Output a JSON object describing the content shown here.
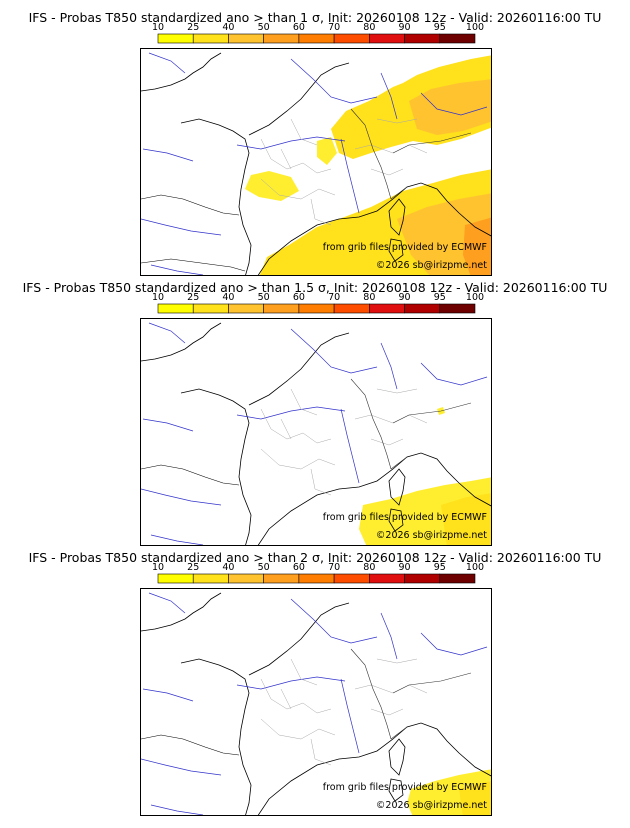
{
  "colorbar": {
    "ticks": [
      "10",
      "25",
      "40",
      "50",
      "60",
      "70",
      "80",
      "90",
      "95",
      "100"
    ],
    "colors": [
      "#ffff00",
      "#ffe11c",
      "#ffc330",
      "#ff9f20",
      "#ff7d00",
      "#ff4d00",
      "#e01010",
      "#b00000",
      "#6e0000"
    ]
  },
  "panels": [
    {
      "title": "IFS - Probas T850  standardized ano > than 1 σ, Init: 20260108 12z - Valid: 20260116:00 TU",
      "credit_source": "from grib files provided by ECMWF",
      "credit_copyright": "©2026 sb@irizpme.net"
    },
    {
      "title": "IFS - Probas T850  standardized ano > than 1.5 σ, Init: 20260108 12z - Valid: 20260116:00 TU",
      "credit_source": "from grib files provided by ECMWF",
      "credit_copyright": "©2026 sb@irizpme.net"
    },
    {
      "title": "IFS - Probas T850  standardized ano > than 2 σ, Init: 20260108 12z - Valid: 20260116:00 TU",
      "credit_source": "from grib files provided by ECMWF",
      "credit_copyright": "©2026 sb@irizpme.net"
    }
  ]
}
